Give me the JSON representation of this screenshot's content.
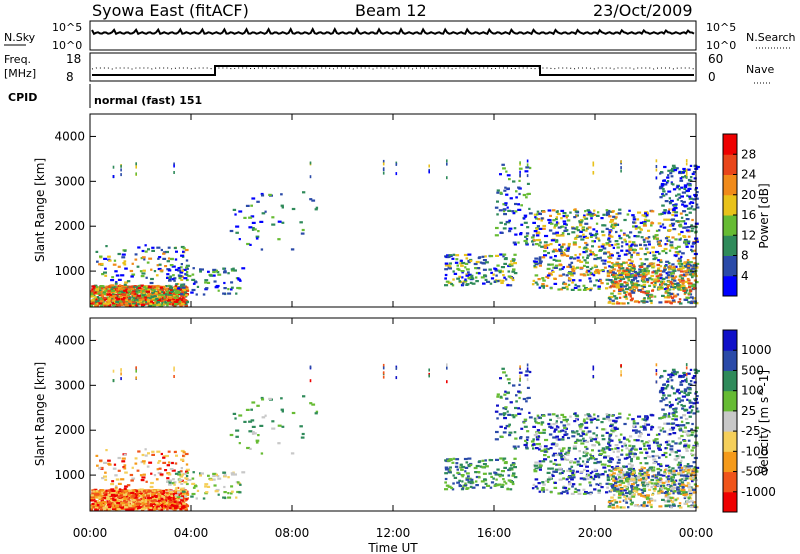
{
  "header": {
    "left": "Syowa East (fitACF)",
    "center": "Beam 12",
    "right": "23/Oct/2009"
  },
  "status_panel": {
    "nsky_label": "N.Sky",
    "nsearch_label": "N.Search",
    "nsky_ticks": [
      "10^5",
      "10^0"
    ],
    "nsearch_ticks": [
      "10^5",
      "10^0"
    ],
    "freq_label_1": "Freq.",
    "freq_label_2": "[MHz]",
    "freq_ticks": [
      "18",
      "8"
    ],
    "nave_label": "Nave",
    "nave_ticks": [
      "60",
      "0"
    ],
    "cpid_label": "CPID",
    "cpid_text": "normal (fast) 151"
  },
  "colors": {
    "power": [
      "#0000ff",
      "#2a4aa8",
      "#2f8a5a",
      "#66bb33",
      "#e8c21a",
      "#f08a1a",
      "#e8451a",
      "#ee0000"
    ],
    "velocity": [
      "#ee0000",
      "#f0541a",
      "#f59a1a",
      "#f5cf5a",
      "#c8c8c8",
      "#66bb33",
      "#2f8a5a",
      "#2a4aa8",
      "#1010c8"
    ],
    "ground_scatter": "#888888"
  },
  "chart_data": [
    {
      "type": "heatmap",
      "name": "power",
      "ylabel": "Slant Range [km]",
      "yticks": [
        "1000",
        "2000",
        "3000",
        "4000"
      ],
      "ylim": [
        200,
        4500
      ],
      "xlim_hours": [
        0,
        24
      ],
      "colorbar_label": "Power [dB]",
      "colorbar_ticks": [
        "4",
        "8",
        "12",
        "16",
        "20",
        "24",
        "28"
      ],
      "colorbar_range": [
        0,
        32
      ]
    },
    {
      "type": "heatmap",
      "name": "velocity",
      "ylabel": "Slant Range [km]",
      "yticks": [
        "1000",
        "2000",
        "3000",
        "4000"
      ],
      "ylim": [
        200,
        4500
      ],
      "xlim_hours": [
        0,
        24
      ],
      "colorbar_label": "Velocity [m s^-1]",
      "colorbar_ticks": [
        "-1000",
        "-500",
        "-100",
        "-25",
        "25",
        "100",
        "500",
        "1000"
      ]
    }
  ],
  "xaxis": {
    "label": "Time UT",
    "ticks": [
      "00:00",
      "04:00",
      "08:00",
      "12:00",
      "16:00",
      "20:00",
      "00:00"
    ]
  }
}
